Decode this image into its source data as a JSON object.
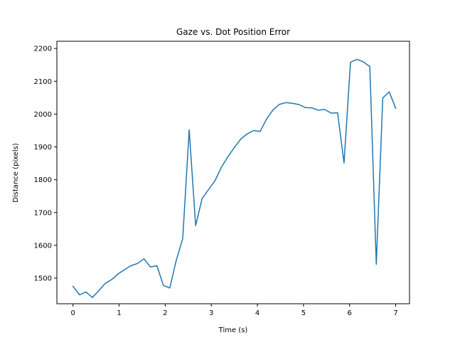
{
  "chart_data": {
    "type": "line",
    "title": "Gaze vs. Dot Position Error",
    "xlabel": "Time (s)",
    "ylabel": "Distance (pixels)",
    "xlim": [
      -0.35,
      7.3
    ],
    "ylim": [
      1422,
      2222
    ],
    "xticks": [
      0,
      1,
      2,
      3,
      4,
      5,
      6,
      7
    ],
    "yticks": [
      1500,
      1600,
      1700,
      1800,
      1900,
      2000,
      2100,
      2200
    ],
    "grid": false,
    "legend": "none",
    "series": [
      {
        "color": "#1f77b4",
        "x": [
          0.0,
          0.14,
          0.28,
          0.42,
          0.56,
          0.7,
          0.84,
          0.98,
          1.12,
          1.26,
          1.4,
          1.54,
          1.68,
          1.82,
          1.96,
          2.1,
          2.24,
          2.38,
          2.52,
          2.66,
          2.8,
          2.94,
          3.08,
          3.22,
          3.36,
          3.5,
          3.64,
          3.78,
          3.92,
          4.06,
          4.2,
          4.34,
          4.48,
          4.62,
          4.76,
          4.9,
          5.04,
          5.18,
          5.32,
          5.46,
          5.6,
          5.74,
          5.88,
          6.02,
          6.16,
          6.3,
          6.44,
          6.58,
          6.72,
          6.86,
          7.0
        ],
        "y": [
          1475,
          1449,
          1458,
          1441,
          1462,
          1484,
          1496,
          1513,
          1526,
          1538,
          1545,
          1559,
          1534,
          1538,
          1478,
          1470,
          1554,
          1620,
          1952,
          1660,
          1742,
          1770,
          1797,
          1838,
          1870,
          1898,
          1924,
          1940,
          1950,
          1947,
          1985,
          2013,
          2030,
          2035,
          2033,
          2029,
          2020,
          2019,
          2012,
          2014,
          2003,
          2004,
          1851,
          2158,
          2167,
          2159,
          2145,
          1542,
          2049,
          2068,
          2018
        ]
      }
    ]
  }
}
